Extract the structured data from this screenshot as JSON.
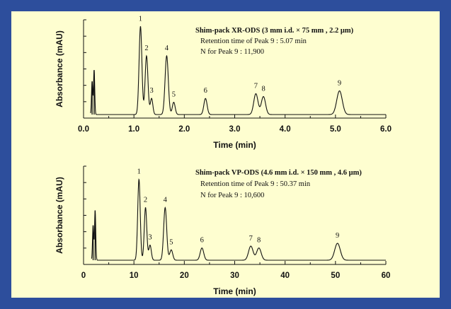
{
  "colors": {
    "frame": "#2d4e9c",
    "panel": "#fefed0",
    "ink": "#111111"
  },
  "chart_data": [
    {
      "type": "line",
      "xlabel": "Time (min)",
      "ylabel": "Absorbance (mAU)",
      "xlim": [
        0,
        6
      ],
      "xticks": [
        "0.0",
        "1.0",
        "2.0",
        "3.0",
        "4.0",
        "5.0",
        "6.0"
      ],
      "ylim": [
        0,
        100
      ],
      "annotation": {
        "title": "Shim-pack XR-ODS  (3 mm i.d. × 75 mm , 2.2 μm)",
        "line1": "Retention time of Peak 9 : 5.07 min",
        "line2": "N for Peak 9 : 11,900"
      },
      "solvent_front": [
        {
          "t": 0.17,
          "h": 35,
          "w": 0.012
        },
        {
          "t": 0.21,
          "h": 47,
          "w": 0.012
        }
      ],
      "peaks": [
        {
          "label": "1",
          "t": 1.13,
          "h": 93,
          "w": 0.028
        },
        {
          "label": "2",
          "t": 1.25,
          "h": 62,
          "w": 0.028
        },
        {
          "label": "3",
          "t": 1.35,
          "h": 17,
          "w": 0.025
        },
        {
          "label": "4",
          "t": 1.65,
          "h": 62,
          "w": 0.032
        },
        {
          "label": "5",
          "t": 1.79,
          "h": 13,
          "w": 0.028
        },
        {
          "label": "6",
          "t": 2.42,
          "h": 17,
          "w": 0.032
        },
        {
          "label": "7",
          "t": 3.42,
          "h": 22,
          "w": 0.042
        },
        {
          "label": "8",
          "t": 3.57,
          "h": 19,
          "w": 0.042
        },
        {
          "label": "9",
          "t": 5.08,
          "h": 25,
          "w": 0.055
        }
      ]
    },
    {
      "type": "line",
      "xlabel": "Time (min)",
      "ylabel": "Absorbance (mAU)",
      "xlim": [
        0,
        60
      ],
      "xticks": [
        "0",
        "10",
        "20",
        "30",
        "40",
        "50",
        "60"
      ],
      "ylim": [
        0,
        100
      ],
      "annotation": {
        "title": "Shim-pack VP-ODS  (4.6 mm i.d. × 150 mm , 4.6 μm)",
        "line1": "Retention time of Peak 9 : 50.37 min",
        "line2": "N for Peak 9 : 10,600"
      },
      "solvent_front": [
        {
          "t": 1.9,
          "h": 37,
          "w": 0.12
        },
        {
          "t": 2.3,
          "h": 53,
          "w": 0.12
        }
      ],
      "peaks": [
        {
          "label": "1",
          "t": 11.0,
          "h": 86,
          "w": 0.25
        },
        {
          "label": "2",
          "t": 12.3,
          "h": 56,
          "w": 0.25
        },
        {
          "label": "3",
          "t": 13.2,
          "h": 16,
          "w": 0.25
        },
        {
          "label": "4",
          "t": 16.2,
          "h": 56,
          "w": 0.3
        },
        {
          "label": "5",
          "t": 17.4,
          "h": 11,
          "w": 0.3
        },
        {
          "label": "6",
          "t": 23.5,
          "h": 13,
          "w": 0.35
        },
        {
          "label": "7",
          "t": 33.2,
          "h": 15,
          "w": 0.45
        },
        {
          "label": "8",
          "t": 34.8,
          "h": 13,
          "w": 0.45
        },
        {
          "label": "9",
          "t": 50.4,
          "h": 18,
          "w": 0.55
        }
      ]
    }
  ]
}
